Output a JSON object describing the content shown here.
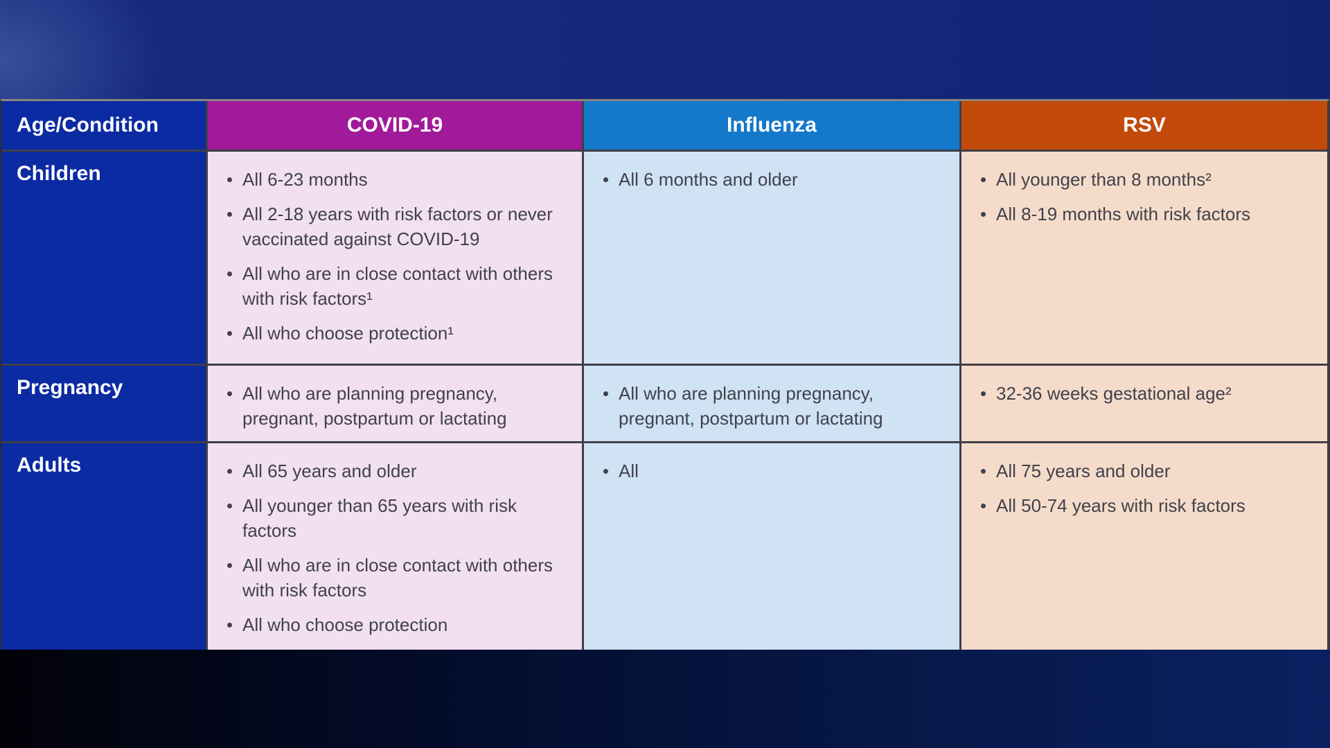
{
  "table": {
    "header": {
      "age": "Age/Condition",
      "covid": "COVID-19",
      "influenza": "Influenza",
      "rsv": "RSV"
    },
    "rows": [
      {
        "label": "Children",
        "covid": [
          "All 6-23 months",
          "All 2-18 years with risk factors or never vaccinated against COVID-19",
          "All who are in close contact with others with risk factors¹",
          "All who choose protection¹"
        ],
        "influenza": [
          "All 6 months and older"
        ],
        "rsv": [
          "All younger than 8 months²",
          "All 8-19 months with risk factors"
        ]
      },
      {
        "label": "Pregnancy",
        "covid": [
          "All who are planning pregnancy, pregnant, postpartum or lactating"
        ],
        "influenza": [
          "All who are planning pregnancy, pregnant, postpartum or lactating"
        ],
        "rsv": [
          "32-36 weeks gestational age²"
        ]
      },
      {
        "label": "Adults",
        "covid": [
          "All 65 years and older",
          "All younger than 65 years with risk factors",
          "All who are in close contact with others with risk factors",
          "All who choose protection"
        ],
        "influenza": [
          "All"
        ],
        "rsv": [
          "All 75 years and older",
          "All 50-74 years with risk factors"
        ]
      }
    ]
  },
  "colors": {
    "row_header_bg": "#0b2ba2",
    "covid_header_bg": "#a01a9a",
    "covid_cell_bg": "#f2e0f0",
    "influenza_header_bg": "#1478cb",
    "influenza_cell_bg": "#cfe3f5",
    "rsv_header_bg": "#c24a0a",
    "rsv_cell_bg": "#f5dcca",
    "header_text": "#ffffff",
    "body_text": "#41414b",
    "background_top": "#13277b",
    "background_bottom": "#061642"
  }
}
